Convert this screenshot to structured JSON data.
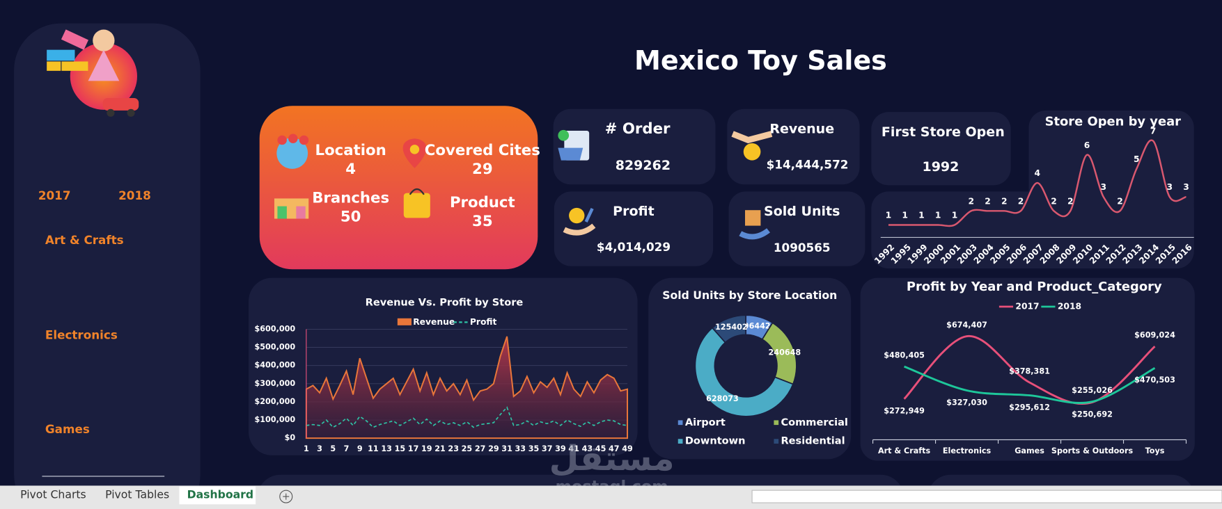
{
  "title": "Mexico Toy Sales",
  "slicers": {
    "years": [
      "2017",
      "2018"
    ],
    "categories": [
      "Art & Crafts",
      "Electronics",
      "Games"
    ]
  },
  "summary": [
    {
      "label": "Location",
      "value": 4
    },
    {
      "label": "Covered Cites",
      "value": 29
    },
    {
      "label": "Branches",
      "value": 50
    },
    {
      "label": "Product",
      "value": 35
    }
  ],
  "kpis": [
    {
      "label": "# Order",
      "value": 829262
    },
    {
      "label": "Revenue",
      "value": "$14,444,572"
    },
    {
      "label": "Profit",
      "value": "$4,014,029"
    },
    {
      "label": "Sold Units",
      "value": 1090565
    },
    {
      "label": "First Store Open",
      "value": 1992
    }
  ],
  "tabs": [
    "Pivot Charts",
    "Pivot Tables",
    "Dashboard"
  ],
  "watermark": {
    "arabic": "مستقل",
    "latin": "mostaql.com"
  },
  "chart_data": [
    {
      "type": "line",
      "title": "Store Open by year",
      "categories": [
        "1992",
        "1995",
        "1999",
        "2000",
        "2001",
        "2003",
        "2004",
        "2005",
        "2006",
        "2007",
        "2008",
        "2009",
        "2010",
        "2011",
        "2012",
        "2013",
        "2014",
        "2015",
        "2016"
      ],
      "values": [
        1,
        1,
        1,
        1,
        1,
        2,
        2,
        2,
        2,
        4,
        2,
        2,
        6,
        3,
        2,
        5,
        7,
        3,
        3
      ],
      "color": "#d9586f"
    },
    {
      "type": "area-line",
      "title": "Revenue Vs. Profit by Store",
      "x": [
        1,
        2,
        3,
        4,
        5,
        6,
        7,
        8,
        9,
        10,
        11,
        12,
        13,
        14,
        15,
        16,
        17,
        18,
        19,
        20,
        21,
        22,
        23,
        24,
        25,
        26,
        27,
        28,
        29,
        30,
        31,
        32,
        33,
        34,
        35,
        36,
        37,
        38,
        39,
        40,
        41,
        42,
        43,
        44,
        45,
        46,
        47,
        48,
        49
      ],
      "xlim": [
        1,
        49
      ],
      "xticks": [
        1,
        3,
        5,
        7,
        9,
        11,
        13,
        15,
        17,
        19,
        21,
        23,
        25,
        27,
        29,
        31,
        33,
        35,
        37,
        39,
        41,
        43,
        45,
        47,
        49
      ],
      "ylim": [
        0,
        600000
      ],
      "yticks": [
        {
          "value": 0,
          "label": "$0"
        },
        {
          "value": 100000,
          "label": "$100,000"
        },
        {
          "value": 200000,
          "label": "$200,000"
        },
        {
          "value": 300000,
          "label": "$300,000"
        },
        {
          "value": 400000,
          "label": "$400,000"
        },
        {
          "value": 500000,
          "label": "$500,000"
        },
        {
          "value": 600000,
          "label": "$600,000"
        }
      ],
      "grid": true,
      "series": [
        {
          "name": "Revenue",
          "color": "#e8763a",
          "values": [
            270000,
            290000,
            250000,
            330000,
            215000,
            290000,
            370000,
            240000,
            440000,
            330000,
            220000,
            270000,
            300000,
            330000,
            240000,
            310000,
            380000,
            260000,
            360000,
            240000,
            330000,
            260000,
            300000,
            240000,
            320000,
            210000,
            260000,
            270000,
            300000,
            450000,
            560000,
            230000,
            260000,
            340000,
            250000,
            310000,
            280000,
            330000,
            240000,
            360000,
            270000,
            230000,
            310000,
            250000,
            320000,
            350000,
            330000,
            260000,
            270000
          ]
        },
        {
          "name": "Profit",
          "color": "#2ec4a6",
          "values": [
            70000,
            75000,
            70000,
            100000,
            60000,
            80000,
            110000,
            70000,
            120000,
            95000,
            60000,
            75000,
            85000,
            95000,
            70000,
            90000,
            110000,
            75000,
            105000,
            70000,
            95000,
            75000,
            85000,
            70000,
            90000,
            60000,
            75000,
            80000,
            85000,
            130000,
            170000,
            70000,
            75000,
            95000,
            70000,
            90000,
            80000,
            95000,
            70000,
            100000,
            80000,
            65000,
            90000,
            70000,
            90000,
            100000,
            95000,
            75000,
            70000
          ]
        }
      ]
    },
    {
      "type": "donut",
      "title": "Sold Units by Store Location",
      "categories": [
        "Airport",
        "Commercial",
        "Downtown",
        "Residential"
      ],
      "values": [
        96442,
        240648,
        628073,
        125402
      ],
      "colors": [
        "#5b8ad4",
        "#9bbb59",
        "#4bacc6",
        "#2c4a78"
      ]
    },
    {
      "type": "line",
      "title": "Profit by Year and Product_Category",
      "categories": [
        "Art & Crafts",
        "Electronics",
        "Games",
        "Sports & Outdoors",
        "Toys"
      ],
      "series": [
        {
          "name": "2017",
          "color": "#e8507a",
          "values": [
            272949,
            674407,
            378381,
            250692,
            609024
          ],
          "value_labels": [
            "$272,949",
            "$674,407",
            "$378,381",
            "$250,692",
            "$609,024"
          ]
        },
        {
          "name": "2018",
          "color": "#1ec79a",
          "values": [
            480405,
            327030,
            295612,
            255026,
            470503
          ],
          "value_labels": [
            "$480,405",
            "$327,030",
            "$295,612",
            "$255,026",
            "$470,503"
          ]
        }
      ]
    }
  ]
}
